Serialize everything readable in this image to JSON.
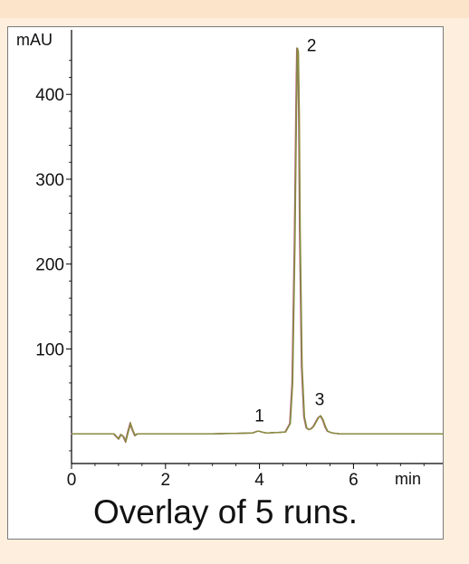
{
  "caption": "Overlay of 5 runs.",
  "colors": {
    "background": "#fdeedd",
    "top_band": "#fbe4c9",
    "trace_main": "#8a8a3a",
    "trace_green": "#6fa25a",
    "trace_red": "#d0524a",
    "trace_purple": "#a05aa8"
  },
  "chart_data": {
    "type": "line",
    "title": "",
    "xlabel": "min",
    "ylabel": "mAU",
    "xlim": [
      0,
      7.9
    ],
    "ylim": [
      -35,
      460
    ],
    "x_ticks": [
      {
        "value": 0,
        "label": "0"
      },
      {
        "value": 2,
        "label": "2"
      },
      {
        "value": 4,
        "label": "4"
      },
      {
        "value": 6,
        "label": "6"
      }
    ],
    "y_ticks": [
      {
        "value": 100,
        "label": "100"
      },
      {
        "value": 200,
        "label": "200"
      },
      {
        "value": 300,
        "label": "300"
      },
      {
        "value": 400,
        "label": "400"
      }
    ],
    "peak_labels": [
      {
        "label": "1",
        "x": 4.0,
        "y": 2
      },
      {
        "label": "2",
        "x": 4.82,
        "y": 455
      },
      {
        "label": "3",
        "x": 5.28,
        "y": 21
      }
    ],
    "series": [
      {
        "runs": 5,
        "x": [
          0,
          0.9,
          0.95,
          1.0,
          1.05,
          1.1,
          1.15,
          1.2,
          1.25,
          1.3,
          1.35,
          1.4,
          1.5,
          3.0,
          3.85,
          3.95,
          4.0,
          4.05,
          4.15,
          4.55,
          4.65,
          4.7,
          4.75,
          4.78,
          4.8,
          4.82,
          4.84,
          4.86,
          4.9,
          4.95,
          5.0,
          5.05,
          5.1,
          5.15,
          5.2,
          5.25,
          5.3,
          5.35,
          5.4,
          5.45,
          5.55,
          5.7,
          6.5,
          7.2,
          7.9
        ],
        "y": [
          0,
          0,
          -3,
          -6,
          -1,
          -3,
          -9,
          2,
          12,
          4,
          -2,
          0,
          0,
          0,
          1,
          3,
          3,
          2,
          1,
          2,
          12,
          60,
          230,
          380,
          455,
          450,
          380,
          240,
          80,
          20,
          7,
          5,
          6,
          9,
          14,
          19,
          21,
          16,
          8,
          3,
          1,
          0,
          0,
          0,
          0
        ]
      }
    ]
  }
}
